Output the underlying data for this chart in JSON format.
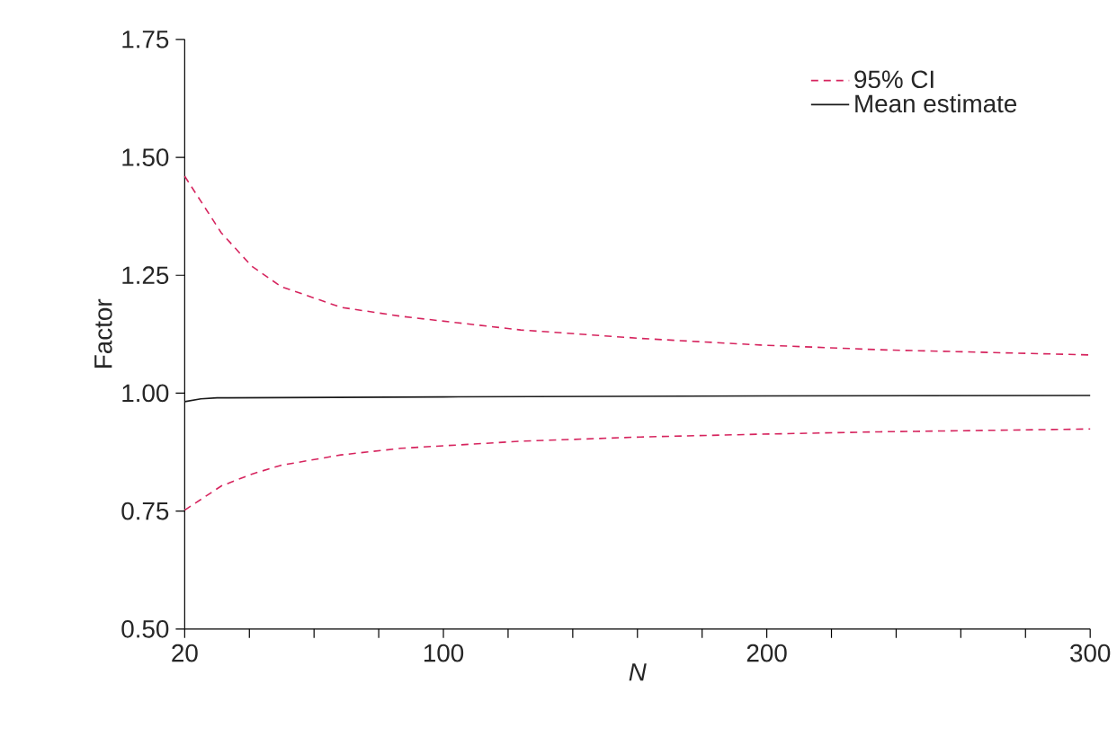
{
  "chart_data": {
    "type": "line",
    "xlabel": "N",
    "ylabel": "Factor",
    "xlim": [
      20,
      300
    ],
    "ylim": [
      0.5,
      1.75
    ],
    "xticks": [
      20,
      {
        "value": 40,
        "label": null
      },
      {
        "value": 60,
        "label": null
      },
      {
        "value": 80,
        "label": null
      },
      100,
      {
        "value": 120,
        "label": null
      },
      {
        "value": 140,
        "label": null
      },
      {
        "value": 160,
        "label": null
      },
      {
        "value": 180,
        "label": null
      },
      200,
      {
        "value": 220,
        "label": null
      },
      {
        "value": 240,
        "label": null
      },
      {
        "value": 260,
        "label": null
      },
      {
        "value": 280,
        "label": null
      },
      300
    ],
    "yticks": [
      {
        "value": 0.5,
        "label": "0.50"
      },
      {
        "value": 0.75,
        "label": "0.75"
      },
      {
        "value": 1.0,
        "label": "1.00"
      },
      {
        "value": 1.25,
        "label": "1.25"
      },
      {
        "value": 1.5,
        "label": "1.50"
      },
      {
        "value": 1.75,
        "label": "1.75"
      }
    ],
    "grid": false,
    "legend": "top right",
    "marker": "none",
    "series": [
      {
        "name": "95% CI",
        "color": "#d6245e",
        "line_style": "dashed",
        "x": [
          20,
          31.3,
          40.6,
          49.8,
          68.3,
          86.8,
          123.9,
          161,
          198,
          235,
          300
        ],
        "values": [
          1.46,
          1.34,
          1.27,
          1.226,
          1.182,
          1.163,
          1.134,
          1.116,
          1.102,
          1.092,
          1.081
        ]
      },
      {
        "name": "Mean estimate",
        "color": "#1a1a1a",
        "line_style": "solid",
        "x": [
          20,
          25,
          30,
          100,
          200,
          300
        ],
        "values": [
          0.982,
          0.988,
          0.99,
          0.992,
          0.994,
          0.995
        ]
      },
      {
        "color": "#d6245e",
        "line_style": "dashed",
        "x": [
          20,
          31.3,
          40.6,
          49.8,
          68.3,
          86.8,
          123.9,
          161,
          198,
          235,
          300
        ],
        "values": [
          0.752,
          0.803,
          0.828,
          0.847,
          0.869,
          0.883,
          0.898,
          0.907,
          0.913,
          0.918,
          0.924
        ]
      }
    ]
  }
}
